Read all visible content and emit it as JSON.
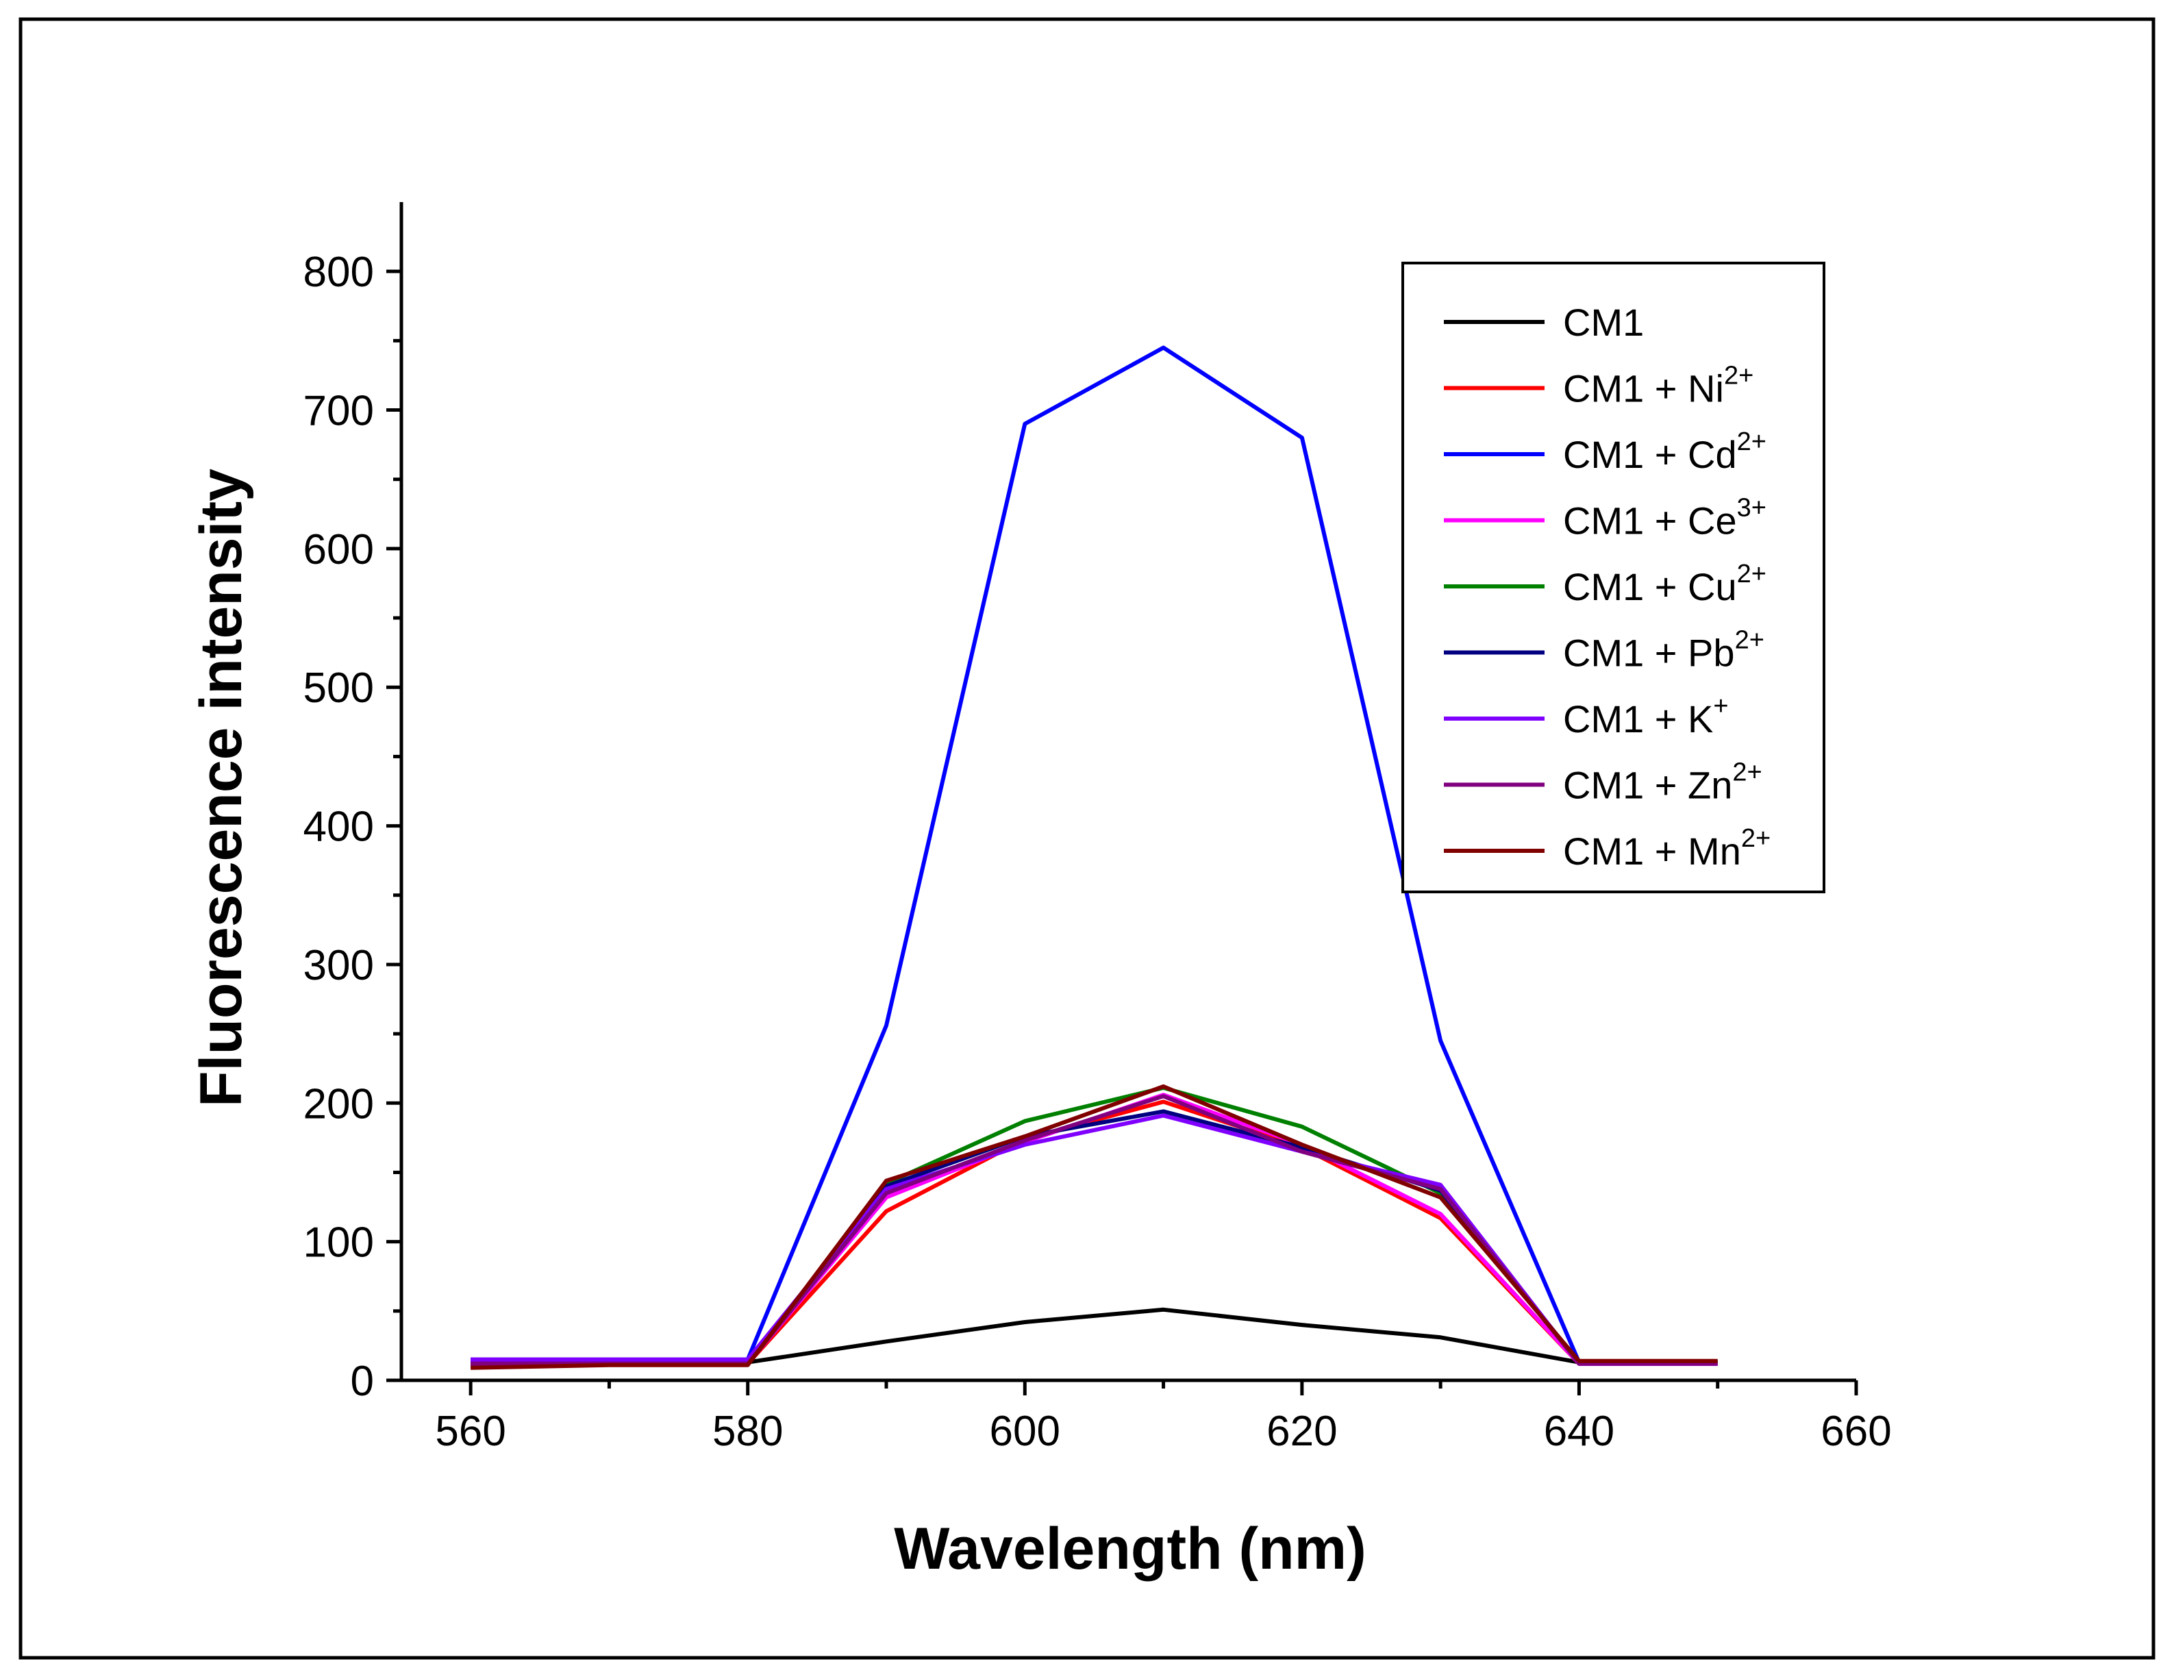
{
  "chart_data": {
    "type": "line",
    "title": "",
    "xlabel": "Wavelength (nm)",
    "ylabel": "Fluorescence intensity",
    "xlim": [
      555,
      660
    ],
    "ylim": [
      0,
      850
    ],
    "xticks": [
      560,
      580,
      600,
      620,
      640,
      660
    ],
    "yticks": [
      0,
      100,
      200,
      300,
      400,
      500,
      600,
      700,
      800
    ],
    "x": [
      560,
      570,
      580,
      590,
      600,
      610,
      620,
      630,
      640,
      650
    ],
    "legend_position": "top-right",
    "series": [
      {
        "name": "CM1",
        "ion": "",
        "charge": "",
        "color": "#000000",
        "values": [
          13,
          13,
          13,
          28,
          42,
          51,
          40,
          31,
          13,
          13
        ]
      },
      {
        "name": "CM1 + Ni",
        "ion": "Ni",
        "charge": "2+",
        "color": "#ff0000",
        "values": [
          10,
          12,
          12,
          122,
          174,
          201,
          168,
          117,
          12,
          12
        ]
      },
      {
        "name": "CM1 + Cd",
        "ion": "Cd",
        "charge": "2+",
        "color": "#0000ff",
        "values": [
          15,
          15,
          15,
          256,
          690,
          745,
          680,
          245,
          13,
          13
        ]
      },
      {
        "name": "CM1 + Ce",
        "ion": "Ce",
        "charge": "3+",
        "color": "#ff00ff",
        "values": [
          12,
          12,
          12,
          132,
          172,
          206,
          170,
          120,
          12,
          12
        ]
      },
      {
        "name": "CM1 + Cu",
        "ion": "Cu",
        "charge": "2+",
        "color": "#008000",
        "values": [
          11,
          12,
          12,
          142,
          187,
          211,
          183,
          135,
          13,
          13
        ]
      },
      {
        "name": "CM1 + Pb",
        "ion": "Pb",
        "charge": "2+",
        "color": "#000080",
        "values": [
          12,
          12,
          12,
          140,
          176,
          194,
          168,
          137,
          13,
          13
        ]
      },
      {
        "name": "CM1 + K",
        "ion": "K",
        "charge": "+",
        "color": "#8000ff",
        "values": [
          15,
          15,
          15,
          138,
          170,
          191,
          165,
          141,
          12,
          12
        ]
      },
      {
        "name": "CM1 + Zn",
        "ion": "Zn",
        "charge": "2+",
        "color": "#800080",
        "values": [
          12,
          12,
          12,
          135,
          173,
          205,
          165,
          138,
          12,
          12
        ]
      },
      {
        "name": "CM1 + Mn",
        "ion": "Mn",
        "charge": "2+",
        "color": "#800000",
        "values": [
          9,
          11,
          11,
          144,
          176,
          212,
          170,
          132,
          14,
          14
        ]
      }
    ]
  }
}
